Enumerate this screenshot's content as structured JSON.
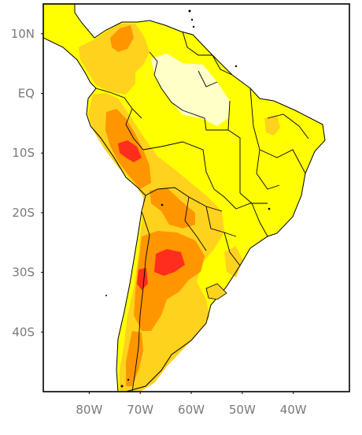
{
  "map": {
    "y_ticks": [
      {
        "lat": 10,
        "label": "10N"
      },
      {
        "lat": 0,
        "label": "EQ"
      },
      {
        "lat": -10,
        "label": "10S"
      },
      {
        "lat": -20,
        "label": "20S"
      },
      {
        "lat": -30,
        "label": "30S"
      },
      {
        "lat": -40,
        "label": "40S"
      }
    ],
    "x_ticks": [
      {
        "lon": -80,
        "label": "80W"
      },
      {
        "lon": -70,
        "label": "70W"
      },
      {
        "lon": -60,
        "label": "60W"
      },
      {
        "lon": -50,
        "label": "50W"
      },
      {
        "lon": -40,
        "label": "40W"
      }
    ],
    "lon_range": [
      -89,
      -29
    ],
    "lat_range": [
      -50,
      15
    ],
    "colors": {
      "background": "#ffffff",
      "level_lowest": "#ffffc8",
      "level_low": "#ffff00",
      "level_mid": "#ffd21e",
      "level_high": "#ff9600",
      "level_highest": "#ff2d1e",
      "boundary": "#000000"
    }
  }
}
